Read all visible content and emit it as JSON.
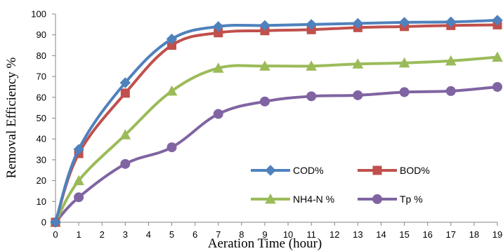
{
  "chart_data": {
    "type": "line",
    "xlabel": "Aeration Time (hour)",
    "ylabel": "Removal Efficiency %",
    "x_ticks": [
      0,
      1,
      2,
      3,
      4,
      5,
      6,
      7,
      8,
      9,
      10,
      11,
      12,
      13,
      14,
      15,
      16,
      17,
      18,
      19
    ],
    "y_ticks": [
      0,
      10,
      20,
      30,
      40,
      50,
      60,
      70,
      80,
      90,
      100
    ],
    "xlim": [
      0,
      19
    ],
    "ylim": [
      0,
      100
    ],
    "grid": false,
    "legend_position": "bottom-right",
    "x": [
      0,
      1,
      3,
      5,
      7,
      9,
      11,
      13,
      15,
      17,
      19
    ],
    "series": [
      {
        "name": "COD%",
        "color": "#4f81bd",
        "marker": "diamond",
        "values": [
          0,
          35,
          67,
          88,
          94,
          94.5,
          95,
          95.5,
          96,
          96.2,
          97
        ]
      },
      {
        "name": "BOD%",
        "color": "#c0504d",
        "marker": "square",
        "values": [
          0,
          33,
          62,
          85,
          91,
          92,
          92.5,
          93.5,
          94,
          94.5,
          94.8
        ]
      },
      {
        "name": "NH4-N %",
        "color": "#9bbb59",
        "marker": "triangle",
        "values": [
          0,
          20,
          42,
          63,
          74,
          75,
          75,
          76,
          76.5,
          77.5,
          79.3
        ]
      },
      {
        "name": "Tp %",
        "color": "#8064a2",
        "marker": "circle",
        "values": [
          0,
          12,
          28,
          36,
          52,
          58,
          60.5,
          61,
          62.5,
          63,
          65
        ]
      }
    ]
  }
}
